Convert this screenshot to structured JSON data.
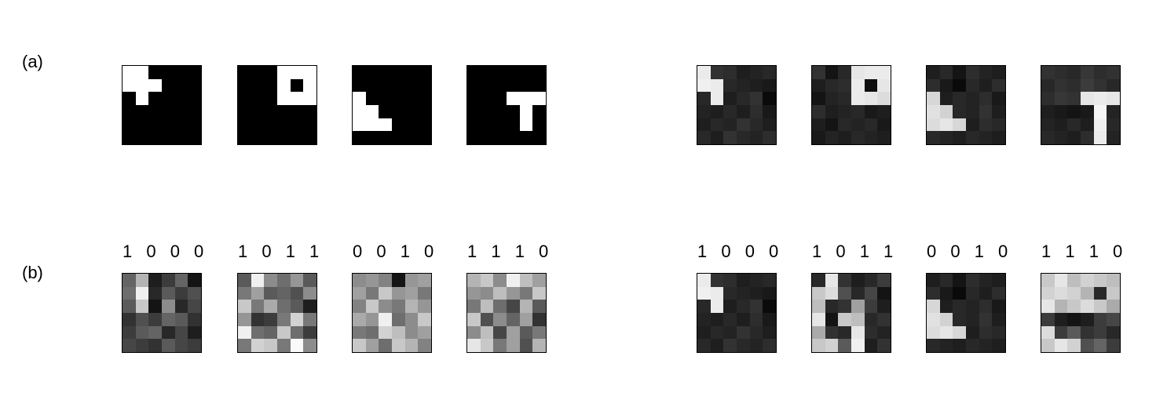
{
  "rows": [
    {
      "label": "(a)",
      "panels": [
        {
          "code": "",
          "cells": [
            [
              255,
              255,
              0,
              0,
              0,
              0
            ],
            [
              255,
              255,
              255,
              0,
              0,
              0
            ],
            [
              0,
              255,
              0,
              0,
              0,
              0
            ],
            [
              0,
              0,
              0,
              0,
              0,
              0
            ],
            [
              0,
              0,
              0,
              0,
              0,
              0
            ],
            [
              0,
              0,
              0,
              0,
              0,
              0
            ]
          ]
        },
        {
          "code": "",
          "cells": [
            [
              0,
              0,
              0,
              255,
              255,
              255
            ],
            [
              0,
              0,
              0,
              255,
              0,
              255
            ],
            [
              0,
              0,
              0,
              255,
              255,
              255
            ],
            [
              0,
              0,
              0,
              0,
              0,
              0
            ],
            [
              0,
              0,
              0,
              0,
              0,
              0
            ],
            [
              0,
              0,
              0,
              0,
              0,
              0
            ]
          ]
        },
        {
          "code": "",
          "cells": [
            [
              0,
              0,
              0,
              0,
              0,
              0
            ],
            [
              0,
              0,
              0,
              0,
              0,
              0
            ],
            [
              255,
              0,
              0,
              0,
              0,
              0
            ],
            [
              255,
              255,
              0,
              0,
              0,
              0
            ],
            [
              255,
              255,
              255,
              0,
              0,
              0
            ],
            [
              0,
              0,
              0,
              0,
              0,
              0
            ]
          ]
        },
        {
          "code": "",
          "cells": [
            [
              0,
              0,
              0,
              0,
              0,
              0
            ],
            [
              0,
              0,
              0,
              0,
              0,
              0
            ],
            [
              0,
              0,
              0,
              255,
              255,
              255
            ],
            [
              0,
              0,
              0,
              0,
              255,
              0
            ],
            [
              0,
              0,
              0,
              0,
              255,
              0
            ],
            [
              0,
              0,
              0,
              0,
              0,
              0
            ]
          ]
        },
        {
          "code": "",
          "cells": [
            [
              235,
              50,
              45,
              30,
              35,
              40
            ],
            [
              240,
              235,
              40,
              35,
              30,
              25
            ],
            [
              40,
              235,
              30,
              40,
              50,
              10
            ],
            [
              35,
              30,
              40,
              30,
              45,
              25
            ],
            [
              30,
              40,
              35,
              50,
              40,
              30
            ],
            [
              40,
              30,
              50,
              40,
              35,
              45
            ]
          ]
        },
        {
          "code": "",
          "cells": [
            [
              50,
              20,
              40,
              230,
              235,
              235
            ],
            [
              30,
              40,
              45,
              235,
              15,
              230
            ],
            [
              20,
              35,
              40,
              235,
              230,
              220
            ],
            [
              45,
              30,
              35,
              40,
              25,
              30
            ],
            [
              30,
              20,
              40,
              35,
              40,
              25
            ],
            [
              25,
              35,
              30,
              40,
              35,
              30
            ]
          ]
        },
        {
          "code": "",
          "cells": [
            [
              30,
              40,
              20,
              45,
              35,
              30
            ],
            [
              45,
              25,
              10,
              40,
              30,
              45
            ],
            [
              215,
              30,
              40,
              35,
              45,
              25
            ],
            [
              225,
              210,
              40,
              35,
              50,
              30
            ],
            [
              220,
              230,
              215,
              30,
              45,
              40
            ],
            [
              40,
              35,
              30,
              40,
              35,
              30
            ]
          ]
        },
        {
          "code": "",
          "cells": [
            [
              50,
              45,
              40,
              55,
              45,
              50
            ],
            [
              40,
              50,
              45,
              60,
              50,
              40
            ],
            [
              45,
              55,
              50,
              230,
              235,
              230
            ],
            [
              30,
              25,
              20,
              25,
              245,
              35
            ],
            [
              35,
              30,
              40,
              30,
              240,
              40
            ],
            [
              40,
              35,
              30,
              45,
              235,
              35
            ]
          ]
        }
      ]
    },
    {
      "label": "(b)",
      "panels": [
        {
          "code": "1 0 0 0",
          "cells": [
            [
              100,
              180,
              30,
              60,
              100,
              20
            ],
            [
              110,
              240,
              40,
              90,
              60,
              80
            ],
            [
              90,
              200,
              20,
              140,
              40,
              70
            ],
            [
              50,
              80,
              60,
              100,
              90,
              50
            ],
            [
              60,
              90,
              100,
              40,
              70,
              30
            ],
            [
              70,
              60,
              50,
              90,
              70,
              60
            ]
          ]
        },
        {
          "code": "1 0 1 1",
          "cells": [
            [
              90,
              240,
              140,
              110,
              150,
              90
            ],
            [
              120,
              160,
              90,
              100,
              80,
              140
            ],
            [
              200,
              120,
              170,
              110,
              90,
              30
            ],
            [
              150,
              50,
              60,
              120,
              210,
              120
            ],
            [
              240,
              110,
              100,
              200,
              110,
              60
            ],
            [
              120,
              210,
              200,
              120,
              250,
              140
            ]
          ]
        },
        {
          "code": "0 0 1 0",
          "cells": [
            [
              140,
              150,
              130,
              20,
              150,
              160
            ],
            [
              160,
              120,
              200,
              150,
              160,
              120
            ],
            [
              130,
              200,
              140,
              120,
              180,
              150
            ],
            [
              170,
              150,
              240,
              110,
              140,
              200
            ],
            [
              120,
              110,
              210,
              190,
              140,
              160
            ],
            [
              200,
              160,
              110,
              200,
              180,
              130
            ]
          ]
        },
        {
          "code": "1 1 1 0",
          "cells": [
            [
              180,
              200,
              140,
              240,
              190,
              160
            ],
            [
              150,
              140,
              190,
              150,
              120,
              200
            ],
            [
              120,
              190,
              110,
              70,
              180,
              90
            ],
            [
              200,
              80,
              140,
              100,
              160,
              50
            ],
            [
              140,
              190,
              70,
              160,
              90,
              120
            ],
            [
              230,
              200,
              120,
              160,
              80,
              180
            ]
          ]
        },
        {
          "code": "1 0 0 0",
          "cells": [
            [
              235,
              50,
              45,
              30,
              35,
              40
            ],
            [
              240,
              235,
              40,
              35,
              30,
              25
            ],
            [
              40,
              235,
              30,
              40,
              50,
              10
            ],
            [
              35,
              30,
              40,
              30,
              45,
              25
            ],
            [
              30,
              40,
              35,
              50,
              40,
              30
            ],
            [
              40,
              30,
              50,
              40,
              35,
              45
            ]
          ]
        },
        {
          "code": "1 0 1 1",
          "cells": [
            [
              40,
              230,
              50,
              30,
              40,
              60
            ],
            [
              200,
              220,
              80,
              40,
              70,
              20
            ],
            [
              190,
              40,
              50,
              160,
              60,
              30
            ],
            [
              230,
              20,
              200,
              190,
              40,
              50
            ],
            [
              170,
              50,
              40,
              230,
              45,
              35
            ],
            [
              200,
              210,
              90,
              240,
              30,
              50
            ]
          ]
        },
        {
          "code": "0 0 1 0",
          "cells": [
            [
              30,
              40,
              20,
              45,
              35,
              30
            ],
            [
              45,
              25,
              10,
              40,
              30,
              45
            ],
            [
              215,
              30,
              40,
              35,
              45,
              25
            ],
            [
              225,
              210,
              40,
              35,
              50,
              30
            ],
            [
              220,
              230,
              215,
              30,
              45,
              40
            ],
            [
              40,
              35,
              30,
              40,
              35,
              30
            ]
          ]
        },
        {
          "code": "1 1 1 0",
          "cells": [
            [
              200,
              230,
              190,
              210,
              200,
              190
            ],
            [
              210,
              220,
              210,
              180,
              40,
              200
            ],
            [
              230,
              180,
              200,
              220,
              200,
              170
            ],
            [
              60,
              30,
              20,
              30,
              60,
              70
            ],
            [
              220,
              60,
              90,
              50,
              60,
              40
            ],
            [
              200,
              230,
              210,
              80,
              100,
              60
            ]
          ]
        }
      ]
    }
  ]
}
